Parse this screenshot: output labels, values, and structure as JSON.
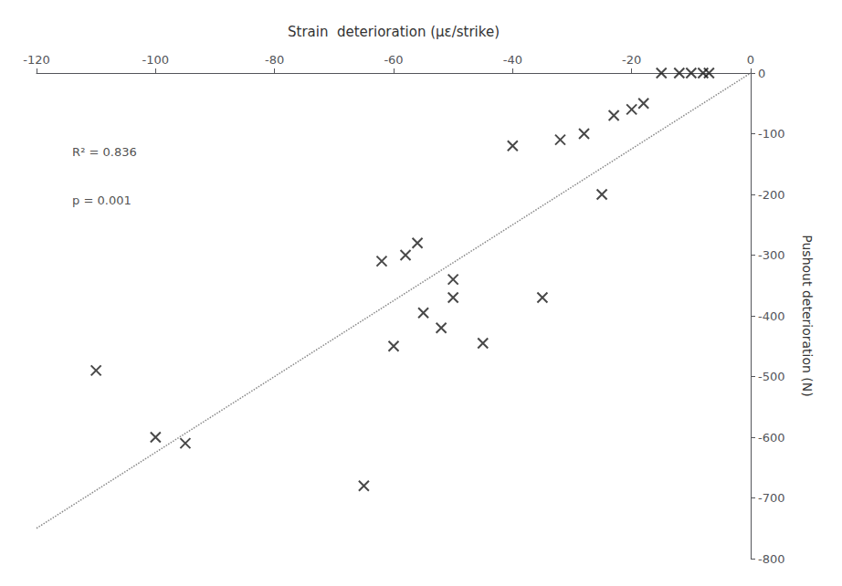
{
  "chart_data": {
    "type": "scatter",
    "xlabel": "Strain  deterioration (με/strike)",
    "ylabel": "Pushout deterioration (N)",
    "xlim": [
      -120,
      0
    ],
    "ylim": [
      -800,
      0
    ],
    "xticks": [
      -120,
      -100,
      -80,
      -60,
      -40,
      -20,
      0
    ],
    "yticks": [
      0,
      -100,
      -200,
      -300,
      -400,
      -500,
      -600,
      -700,
      -800
    ],
    "grid": false,
    "series": [
      {
        "type": "scatter",
        "marker": "x",
        "color": "#1a1a1a",
        "x": [
          -15,
          -12,
          -10,
          -8,
          -7,
          -18,
          -20,
          -23,
          -28,
          -32,
          -40,
          -25,
          -56,
          -58,
          -62,
          -50,
          -50,
          -55,
          -52,
          -45,
          -60,
          -35,
          -110,
          -100,
          -95,
          -65
        ],
        "values": [
          0,
          0,
          0,
          0,
          0,
          -50,
          -60,
          -70,
          -100,
          -110,
          -120,
          -200,
          -280,
          -300,
          -310,
          -340,
          -370,
          -395,
          -420,
          -445,
          -450,
          -370,
          -490,
          -600,
          -610,
          -680
        ]
      },
      {
        "type": "line",
        "line_style": "dotted",
        "color": "#888888",
        "x": [
          -120,
          0
        ],
        "values": [
          -750,
          0
        ]
      }
    ],
    "annotations": [
      {
        "text": "R² = 0.836",
        "x": -114,
        "y": -130
      },
      {
        "text": "p = 0.001",
        "x": -114,
        "y": -210
      }
    ]
  }
}
